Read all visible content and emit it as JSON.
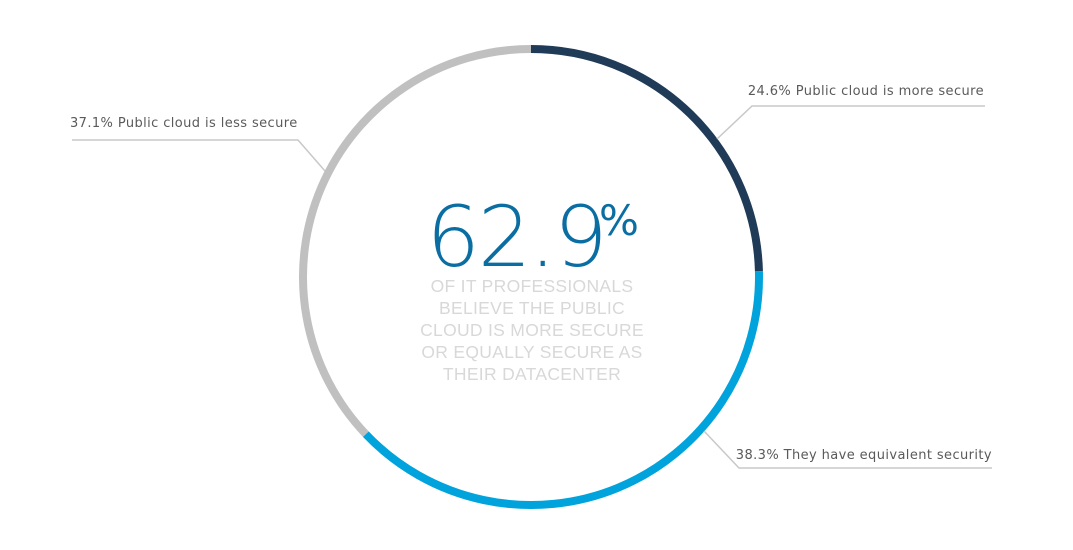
{
  "chart_data": {
    "type": "pie",
    "variant": "donut",
    "slices": [
      {
        "label": "24.6% Public cloud is more secure",
        "value": 24.6,
        "color": "#1f3b57"
      },
      {
        "label": "38.3% They have equivalent security",
        "value": 38.3,
        "color": "#00a3dc"
      },
      {
        "label": "37.1% Public cloud is less secure",
        "value": 37.1,
        "color": "#c0c0c0"
      }
    ]
  },
  "center": {
    "number": "62.9",
    "percent_sign": "%",
    "number_color": "#0b6ea3",
    "lines": [
      "OF IT PROFESSIONALS",
      "BELIEVE THE PUBLIC",
      "CLOUD IS MORE SECURE",
      "OR EQUALLY SECURE AS",
      "THEIR DATACENTER"
    ]
  },
  "colors": {
    "leader_line": "#c8c8c8",
    "label_text": "#5a5a5a"
  }
}
